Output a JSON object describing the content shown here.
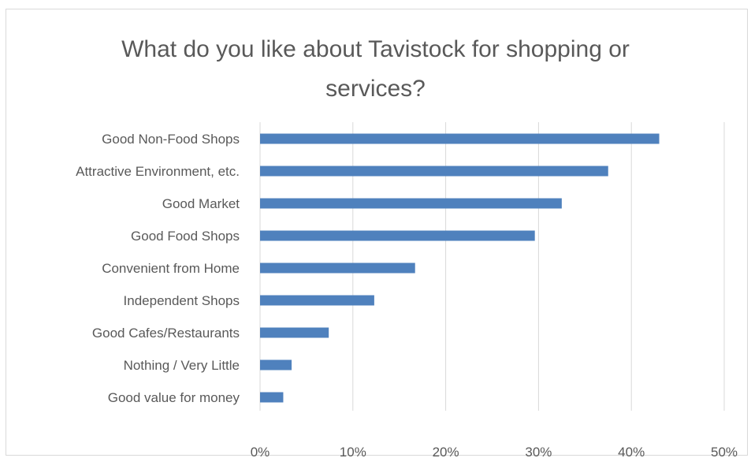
{
  "chart_data": {
    "type": "bar",
    "orientation": "horizontal",
    "title_lines": [
      "What do you like about Tavistock for shopping or",
      "services?"
    ],
    "categories": [
      "Good Non-Food Shops",
      "Attractive Environment, etc.",
      "Good Market",
      "Good Food Shops",
      "Convenient from Home",
      "Independent Shops",
      "Good Cafes/Restaurants",
      "Nothing / Very Little",
      "Good value for money"
    ],
    "values": [
      0.43,
      0.375,
      0.325,
      0.296,
      0.167,
      0.123,
      0.074,
      0.034,
      0.025
    ],
    "xlim": [
      0,
      0.5
    ],
    "xticks": [
      0,
      0.1,
      0.2,
      0.3,
      0.4,
      0.5
    ],
    "xtick_labels": [
      "0%",
      "10%",
      "20%",
      "30%",
      "40%",
      "50%"
    ],
    "grid": true,
    "legend": "none",
    "bar_color": "#4f81bd",
    "grid_color": "#d9d9d9"
  }
}
